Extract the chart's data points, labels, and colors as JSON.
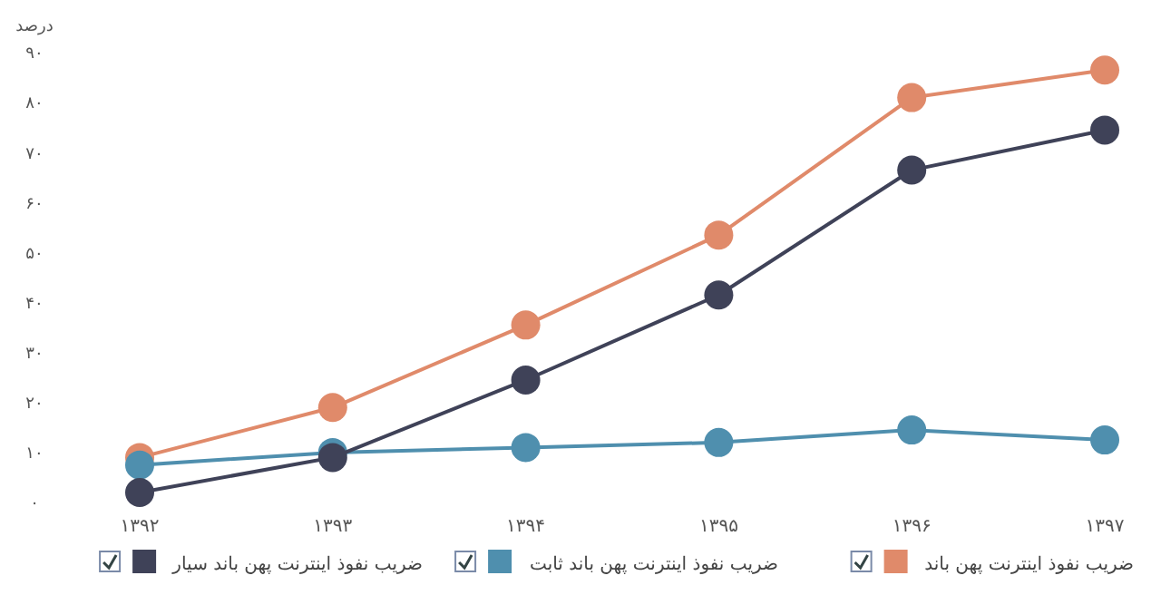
{
  "chart_data": {
    "type": "line",
    "ylabel": "درصد",
    "categories": [
      "۱۳۹۲",
      "۱۳۹۳",
      "۱۳۹۴",
      "۱۳۹۵",
      "۱۳۹۶",
      "۱۳۹۷"
    ],
    "ylim": [
      0,
      90
    ],
    "yticks": [
      {
        "value": 0,
        "label": "۰"
      },
      {
        "value": 10,
        "label": "۱۰"
      },
      {
        "value": 20,
        "label": "۲۰"
      },
      {
        "value": 30,
        "label": "۳۰"
      },
      {
        "value": 40,
        "label": "۴۰"
      },
      {
        "value": 50,
        "label": "۵۰"
      },
      {
        "value": 60,
        "label": "۶۰"
      },
      {
        "value": 70,
        "label": "۷۰"
      },
      {
        "value": 80,
        "label": "۸۰"
      },
      {
        "value": 90,
        "label": "۹۰"
      }
    ],
    "grid": false,
    "legend": "bottom",
    "marker": "circle",
    "line_style": "solid",
    "series": [
      {
        "name": "ضریب نفوذ اینترنت پهن باند",
        "color": "#e08a6a",
        "values": [
          9,
          19,
          35.5,
          53.5,
          81,
          86.5
        ]
      },
      {
        "name": "ضریب نفوذ اینترنت پهن باند ثابت",
        "color": "#4f8fae",
        "values": [
          7.5,
          10,
          11,
          12,
          14.5,
          12.5
        ]
      },
      {
        "name": "ضریب نفوذ اینترنت پهن باند سیار",
        "color": "#3f4258",
        "values": [
          2,
          9,
          24.5,
          41.5,
          66.5,
          74.5
        ]
      }
    ]
  }
}
